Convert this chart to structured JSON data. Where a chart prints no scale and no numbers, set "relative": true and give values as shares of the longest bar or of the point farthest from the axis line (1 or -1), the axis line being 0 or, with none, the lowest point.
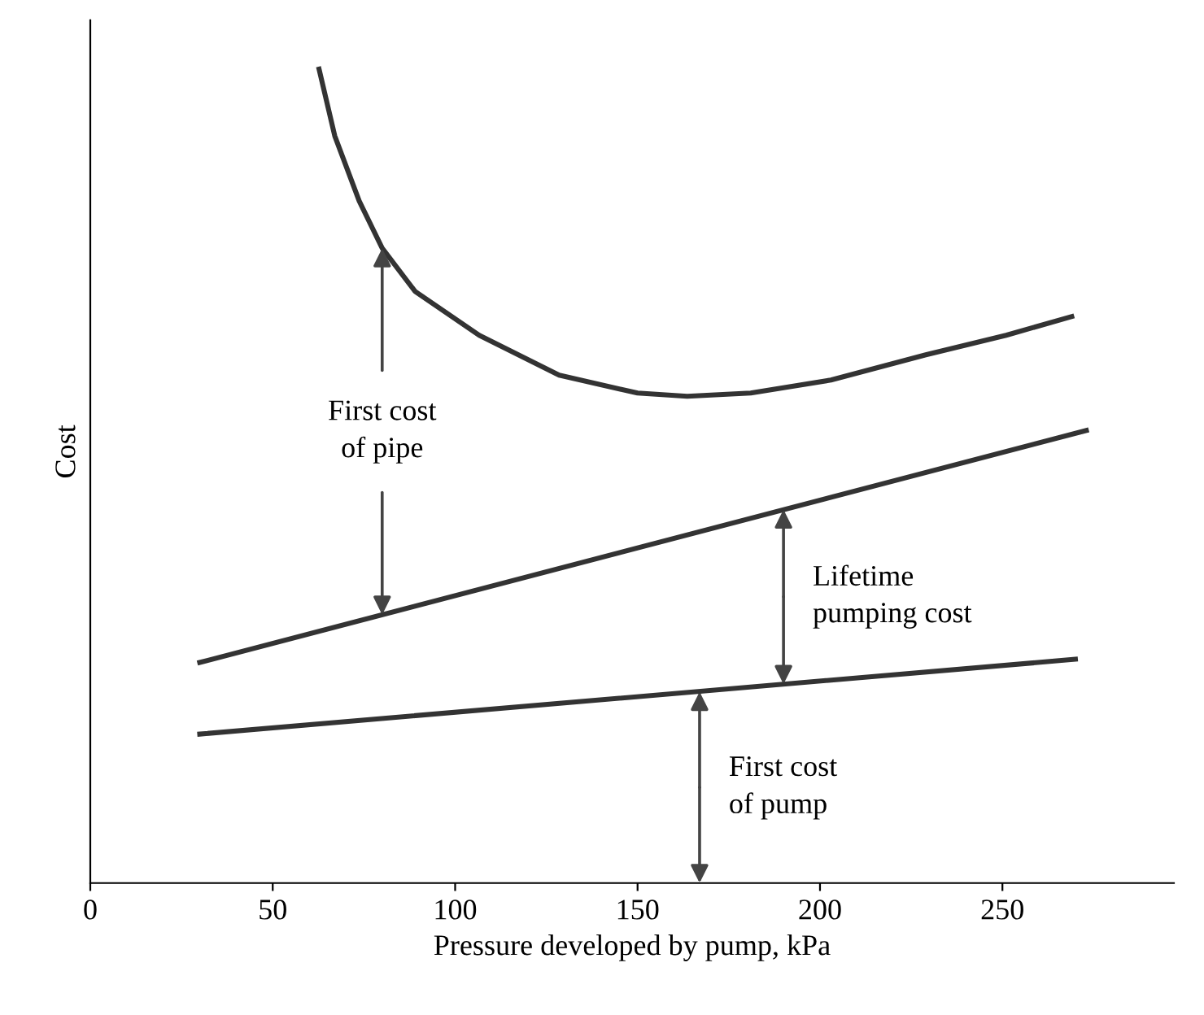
{
  "chart_data": {
    "type": "line",
    "relative": true,
    "xlabel": "Pressure developed by pump, kPa",
    "ylabel": "Cost",
    "xlim": [
      0,
      297
    ],
    "xticks": [
      0,
      50,
      100,
      150,
      200,
      250
    ],
    "grid": false,
    "legend": false,
    "marker": "none",
    "line_style": "solid",
    "series": [
      {
        "color": "#333333",
        "x": [
          62.7,
          67,
          73.7,
          80,
          89,
          106.6,
          128.5,
          150,
          163.6,
          181,
          203,
          229,
          251,
          269
        ],
        "values": [
          1.0,
          0.918,
          0.838,
          0.78,
          0.727,
          0.673,
          0.624,
          0.602,
          0.598,
          0.602,
          0.618,
          0.649,
          0.673,
          0.696
        ]
      },
      {
        "color": "#333333",
        "x": [
          30,
          273
        ],
        "values": [
          0.271,
          0.556
        ]
      },
      {
        "color": "#333333",
        "x": [
          30,
          270
        ],
        "values": [
          0.183,
          0.275
        ]
      }
    ],
    "annotations": [
      {
        "text": "First cost\nof pipe",
        "x": 80,
        "y": 0.78
      },
      {
        "text": "Lifetime\npumping cost",
        "x": 190,
        "y": 0.459
      },
      {
        "text": "First cost\nof pump",
        "x": 167,
        "y": 0.235
      }
    ]
  }
}
